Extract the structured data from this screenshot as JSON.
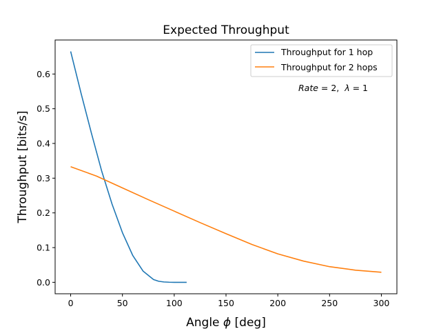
{
  "chart_data": {
    "type": "line",
    "title": "Expected Throughput",
    "xlabel_text": "Angle",
    "xlabel_symbol": "ϕ",
    "xlabel_unit": "[deg]",
    "ylabel": "Throughput [bits/s]",
    "xlim": [
      -15,
      315
    ],
    "ylim": [
      -0.033,
      0.698
    ],
    "xticks": [
      0,
      50,
      100,
      150,
      200,
      250,
      300
    ],
    "yticks": [
      0.0,
      0.1,
      0.2,
      0.3,
      0.4,
      0.5,
      0.6
    ],
    "ytick_labels": [
      "0.0",
      "0.1",
      "0.2",
      "0.3",
      "0.4",
      "0.5",
      "0.6"
    ],
    "grid": false,
    "legend_position": "upper-right",
    "annotation": {
      "rate_symbol": "Rate",
      "rate_rest": " = 2,  ",
      "lambda_symbol": "λ",
      "lambda_rest": " = 1"
    },
    "series": [
      {
        "name": "Throughput for 1 hop",
        "color": "#1f77b4",
        "x": [
          0,
          10,
          20,
          30,
          40,
          50,
          60,
          70,
          80,
          85,
          90,
          95,
          100,
          105,
          112
        ],
        "y": [
          0.665,
          0.545,
          0.43,
          0.32,
          0.225,
          0.143,
          0.077,
          0.032,
          0.008,
          0.003,
          0.001,
          0.0003,
          0.0,
          0.0,
          0.0
        ]
      },
      {
        "name": "Throughput for 2 hops",
        "color": "#ff7f0e",
        "x": [
          0,
          25,
          50,
          75,
          100,
          125,
          150,
          175,
          200,
          225,
          250,
          275,
          300
        ],
        "y": [
          0.333,
          0.306,
          0.272,
          0.238,
          0.205,
          0.172,
          0.14,
          0.109,
          0.082,
          0.061,
          0.045,
          0.035,
          0.029
        ]
      }
    ]
  }
}
